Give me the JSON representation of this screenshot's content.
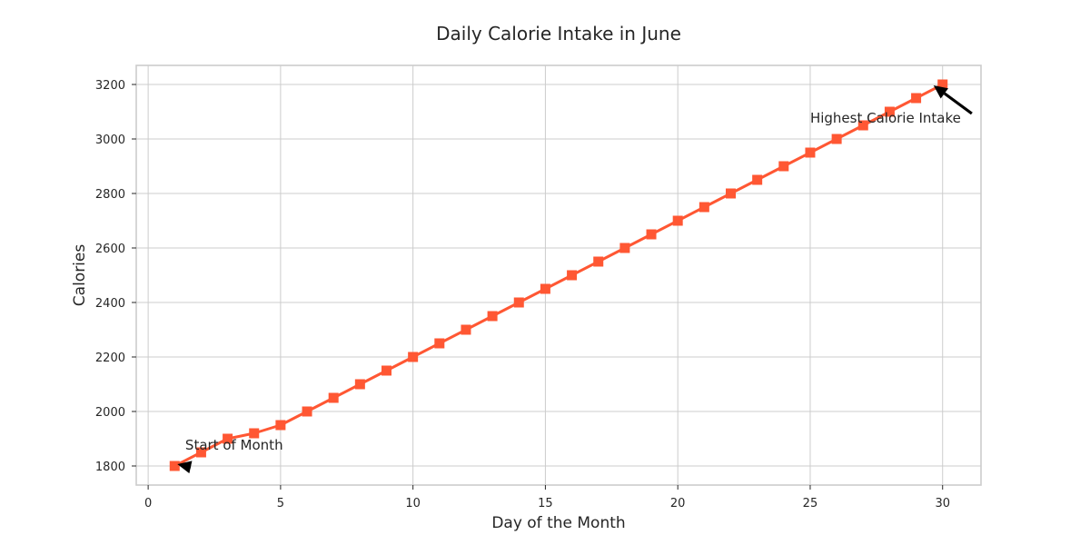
{
  "chart_data": {
    "type": "line",
    "title": "Daily Calorie Intake in June",
    "xlabel": "Day of the Month",
    "ylabel": "Calories",
    "xlim": [
      -0.45,
      31.45
    ],
    "ylim": [
      1730,
      3270
    ],
    "x_ticks": [
      0,
      5,
      10,
      15,
      20,
      25,
      30
    ],
    "y_ticks": [
      1800,
      2000,
      2200,
      2400,
      2600,
      2800,
      3000,
      3200
    ],
    "grid": true,
    "marker": "square",
    "series": [
      {
        "color": "#ff5733",
        "x": [
          1,
          2,
          3,
          4,
          5,
          6,
          7,
          8,
          9,
          10,
          11,
          12,
          13,
          14,
          15,
          16,
          17,
          18,
          19,
          20,
          21,
          22,
          23,
          24,
          25,
          26,
          27,
          28,
          29,
          30
        ],
        "values": [
          1800,
          1850,
          1900,
          1920,
          1950,
          2000,
          2050,
          2100,
          2150,
          2200,
          2250,
          2300,
          2350,
          2400,
          2450,
          2500,
          2550,
          2600,
          2650,
          2700,
          2750,
          2800,
          2850,
          2900,
          2950,
          3000,
          3050,
          3100,
          3150,
          3200
        ]
      }
    ],
    "annotations": [
      {
        "text": "Start of Month",
        "point": [
          1,
          1800
        ],
        "text_at": [
          1.4,
          1860
        ]
      },
      {
        "text": "Highest Calorie Intake",
        "point": [
          30,
          3200
        ],
        "text_at": [
          25,
          3060
        ]
      }
    ]
  }
}
